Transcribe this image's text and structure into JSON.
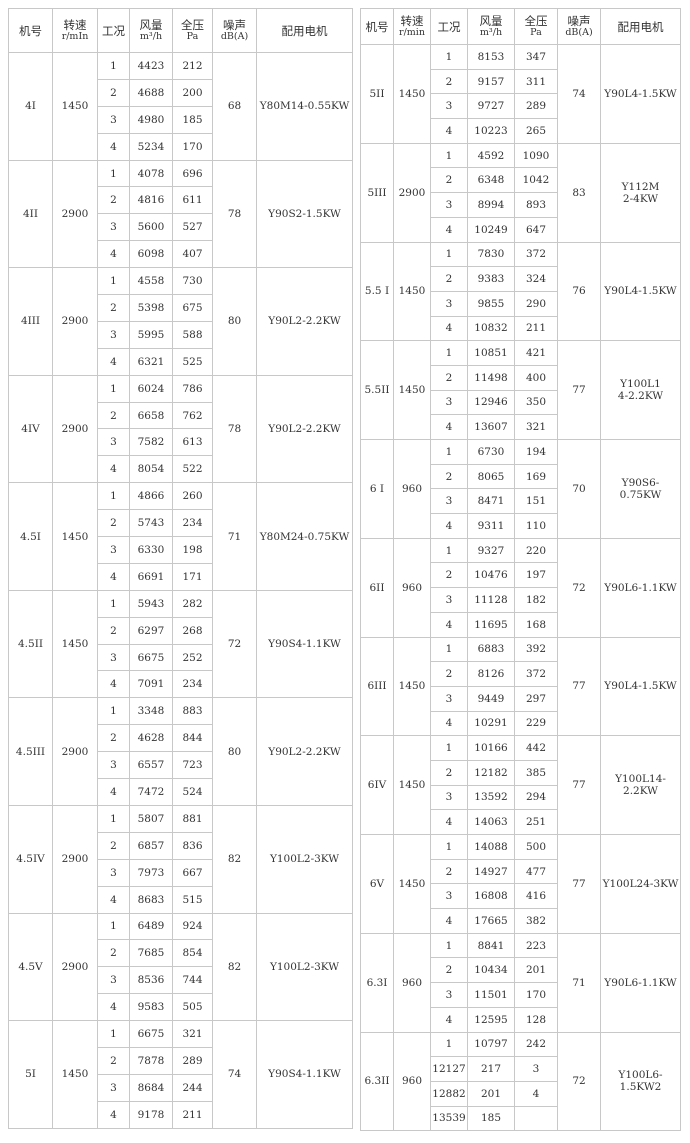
{
  "left": {
    "header": [
      [
        "机号"
      ],
      [
        "转速",
        "r/mIn"
      ],
      [
        "工况"
      ],
      [
        "风量",
        "m³/h"
      ],
      [
        "全压",
        "Pa"
      ],
      [
        "噪声",
        "dB(A)"
      ],
      [
        "配用电机"
      ]
    ],
    "groups": [
      {
        "model": "4I",
        "speed": "1450",
        "noise": "68",
        "motor": [
          "Y80M14-0.55KW"
        ],
        "rows": [
          [
            1,
            4423,
            212
          ],
          [
            2,
            4688,
            200
          ],
          [
            3,
            4980,
            185
          ],
          [
            4,
            5234,
            170
          ]
        ]
      },
      {
        "model": "4II",
        "speed": "2900",
        "noise": "78",
        "motor": [
          "Y90S2-1.5KW"
        ],
        "rows": [
          [
            1,
            4078,
            696
          ],
          [
            2,
            4816,
            611
          ],
          [
            3,
            5600,
            527
          ],
          [
            4,
            6098,
            407
          ]
        ]
      },
      {
        "model": "4III",
        "speed": "2900",
        "noise": "80",
        "motor": [
          "Y90L2-2.2KW"
        ],
        "rows": [
          [
            1,
            4558,
            730
          ],
          [
            2,
            5398,
            675
          ],
          [
            3,
            5995,
            588
          ],
          [
            4,
            6321,
            525
          ]
        ]
      },
      {
        "model": "4IV",
        "speed": "2900",
        "noise": "78",
        "motor": [
          "Y90L2-2.2KW"
        ],
        "rows": [
          [
            1,
            6024,
            786
          ],
          [
            2,
            6658,
            762
          ],
          [
            3,
            7582,
            613
          ],
          [
            4,
            8054,
            522
          ]
        ]
      },
      {
        "model": "4.5I",
        "speed": "1450",
        "noise": "71",
        "motor": [
          "Y80M24-0.75KW"
        ],
        "rows": [
          [
            1,
            4866,
            260
          ],
          [
            2,
            5743,
            234
          ],
          [
            3,
            6330,
            198
          ],
          [
            4,
            6691,
            171
          ]
        ]
      },
      {
        "model": "4.5II",
        "speed": "1450",
        "noise": "72",
        "motor": [
          "Y90S4-1.1KW"
        ],
        "rows": [
          [
            1,
            5943,
            282
          ],
          [
            2,
            6297,
            268
          ],
          [
            3,
            6675,
            252
          ],
          [
            4,
            7091,
            234
          ]
        ]
      },
      {
        "model": "4.5III",
        "speed": "2900",
        "noise": "80",
        "motor": [
          "Y90L2-2.2KW"
        ],
        "rows": [
          [
            1,
            3348,
            883
          ],
          [
            2,
            4628,
            844
          ],
          [
            3,
            6557,
            723
          ],
          [
            4,
            7472,
            524
          ]
        ]
      },
      {
        "model": "4.5IV",
        "speed": "2900",
        "noise": "82",
        "motor": [
          "Y100L2-3KW"
        ],
        "rows": [
          [
            1,
            5807,
            881
          ],
          [
            2,
            6857,
            836
          ],
          [
            3,
            7973,
            667
          ],
          [
            4,
            8683,
            515
          ]
        ]
      },
      {
        "model": "4.5V",
        "speed": "2900",
        "noise": "82",
        "motor": [
          "Y100L2-3KW"
        ],
        "rows": [
          [
            1,
            6489,
            924
          ],
          [
            2,
            7685,
            854
          ],
          [
            3,
            8536,
            744
          ],
          [
            4,
            9583,
            505
          ]
        ]
      },
      {
        "model": "5I",
        "speed": "1450",
        "noise": "74",
        "motor": [
          "Y90S4-1.1KW"
        ],
        "rows": [
          [
            1,
            6675,
            321
          ],
          [
            2,
            7878,
            289
          ],
          [
            3,
            8684,
            244
          ],
          [
            4,
            9178,
            211
          ]
        ]
      }
    ]
  },
  "right": {
    "header": [
      [
        "机号"
      ],
      [
        "转速",
        "r/min"
      ],
      [
        "工况"
      ],
      [
        "风量",
        "m³/h"
      ],
      [
        "全压",
        "Pa"
      ],
      [
        "噪声",
        "dB(A)"
      ],
      [
        "配用电机"
      ]
    ],
    "groups": [
      {
        "model": "5II",
        "speed": "1450",
        "noise": "74",
        "motor": [
          "Y90L4-1.5KW"
        ],
        "rows": [
          [
            1,
            8153,
            347
          ],
          [
            2,
            9157,
            311
          ],
          [
            3,
            9727,
            289
          ],
          [
            4,
            10223,
            265
          ]
        ]
      },
      {
        "model": "5III",
        "speed": "2900",
        "noise": "83",
        "motor": [
          "Y112M",
          "2-4KW"
        ],
        "rows": [
          [
            1,
            4592,
            1090
          ],
          [
            2,
            6348,
            1042
          ],
          [
            3,
            8994,
            893
          ],
          [
            4,
            10249,
            647
          ]
        ]
      },
      {
        "model": "5.5 I",
        "speed": "1450",
        "noise": "76",
        "motor": [
          "Y90L4-1.5KW"
        ],
        "rows": [
          [
            1,
            7830,
            372
          ],
          [
            2,
            9383,
            324
          ],
          [
            3,
            9855,
            290
          ],
          [
            4,
            10832,
            211
          ]
        ]
      },
      {
        "model": "5.5II",
        "speed": "1450",
        "noise": "77",
        "motor": [
          "Y100L1",
          "4-2.2KW"
        ],
        "rows": [
          [
            1,
            10851,
            421
          ],
          [
            2,
            11498,
            400
          ],
          [
            3,
            12946,
            350
          ],
          [
            4,
            13607,
            321
          ]
        ]
      },
      {
        "model": "6 I",
        "speed": "960",
        "noise": "70",
        "motor": [
          "Y90S6-0.75KW"
        ],
        "rows": [
          [
            1,
            6730,
            194
          ],
          [
            2,
            8065,
            169
          ],
          [
            3,
            8471,
            151
          ],
          [
            4,
            9311,
            110
          ]
        ]
      },
      {
        "model": "6II",
        "speed": "960",
        "noise": "72",
        "motor": [
          "Y90L6-1.1KW"
        ],
        "rows": [
          [
            1,
            9327,
            220
          ],
          [
            2,
            10476,
            197
          ],
          [
            3,
            11128,
            182
          ],
          [
            4,
            11695,
            168
          ]
        ]
      },
      {
        "model": "6III",
        "speed": "1450",
        "noise": "77",
        "motor": [
          "Y90L4-1.5KW"
        ],
        "rows": [
          [
            1,
            6883,
            392
          ],
          [
            2,
            8126,
            372
          ],
          [
            3,
            9449,
            297
          ],
          [
            4,
            10291,
            229
          ]
        ]
      },
      {
        "model": "6IV",
        "speed": "1450",
        "noise": "77",
        "motor": [
          "Y100L14-",
          "2.2KW"
        ],
        "rows": [
          [
            1,
            10166,
            442
          ],
          [
            2,
            12182,
            385
          ],
          [
            3,
            13592,
            294
          ],
          [
            4,
            14063,
            251
          ]
        ]
      },
      {
        "model": "6V",
        "speed": "1450",
        "noise": "77",
        "motor": [
          "Y100L24-3KW"
        ],
        "rows": [
          [
            1,
            14088,
            500
          ],
          [
            2,
            14927,
            477
          ],
          [
            3,
            16808,
            416
          ],
          [
            4,
            17665,
            382
          ]
        ]
      },
      {
        "model": "6.3I",
        "speed": "960",
        "noise": "71",
        "motor": [
          "Y90L6-1.1KW"
        ],
        "rows": [
          [
            1,
            8841,
            223
          ],
          [
            2,
            10434,
            201
          ],
          [
            3,
            11501,
            170
          ],
          [
            4,
            12595,
            128
          ]
        ]
      },
      {
        "model": "6.3II",
        "speed": "960",
        "noise": "72",
        "motor": [
          "Y100L6-",
          "1.5KW2"
        ],
        "rows": [
          [
            1,
            10797,
            242
          ],
          [
            12127,
            217,
            3
          ],
          [
            12882,
            201,
            4
          ],
          [
            13539,
            185,
            null
          ]
        ]
      }
    ]
  }
}
